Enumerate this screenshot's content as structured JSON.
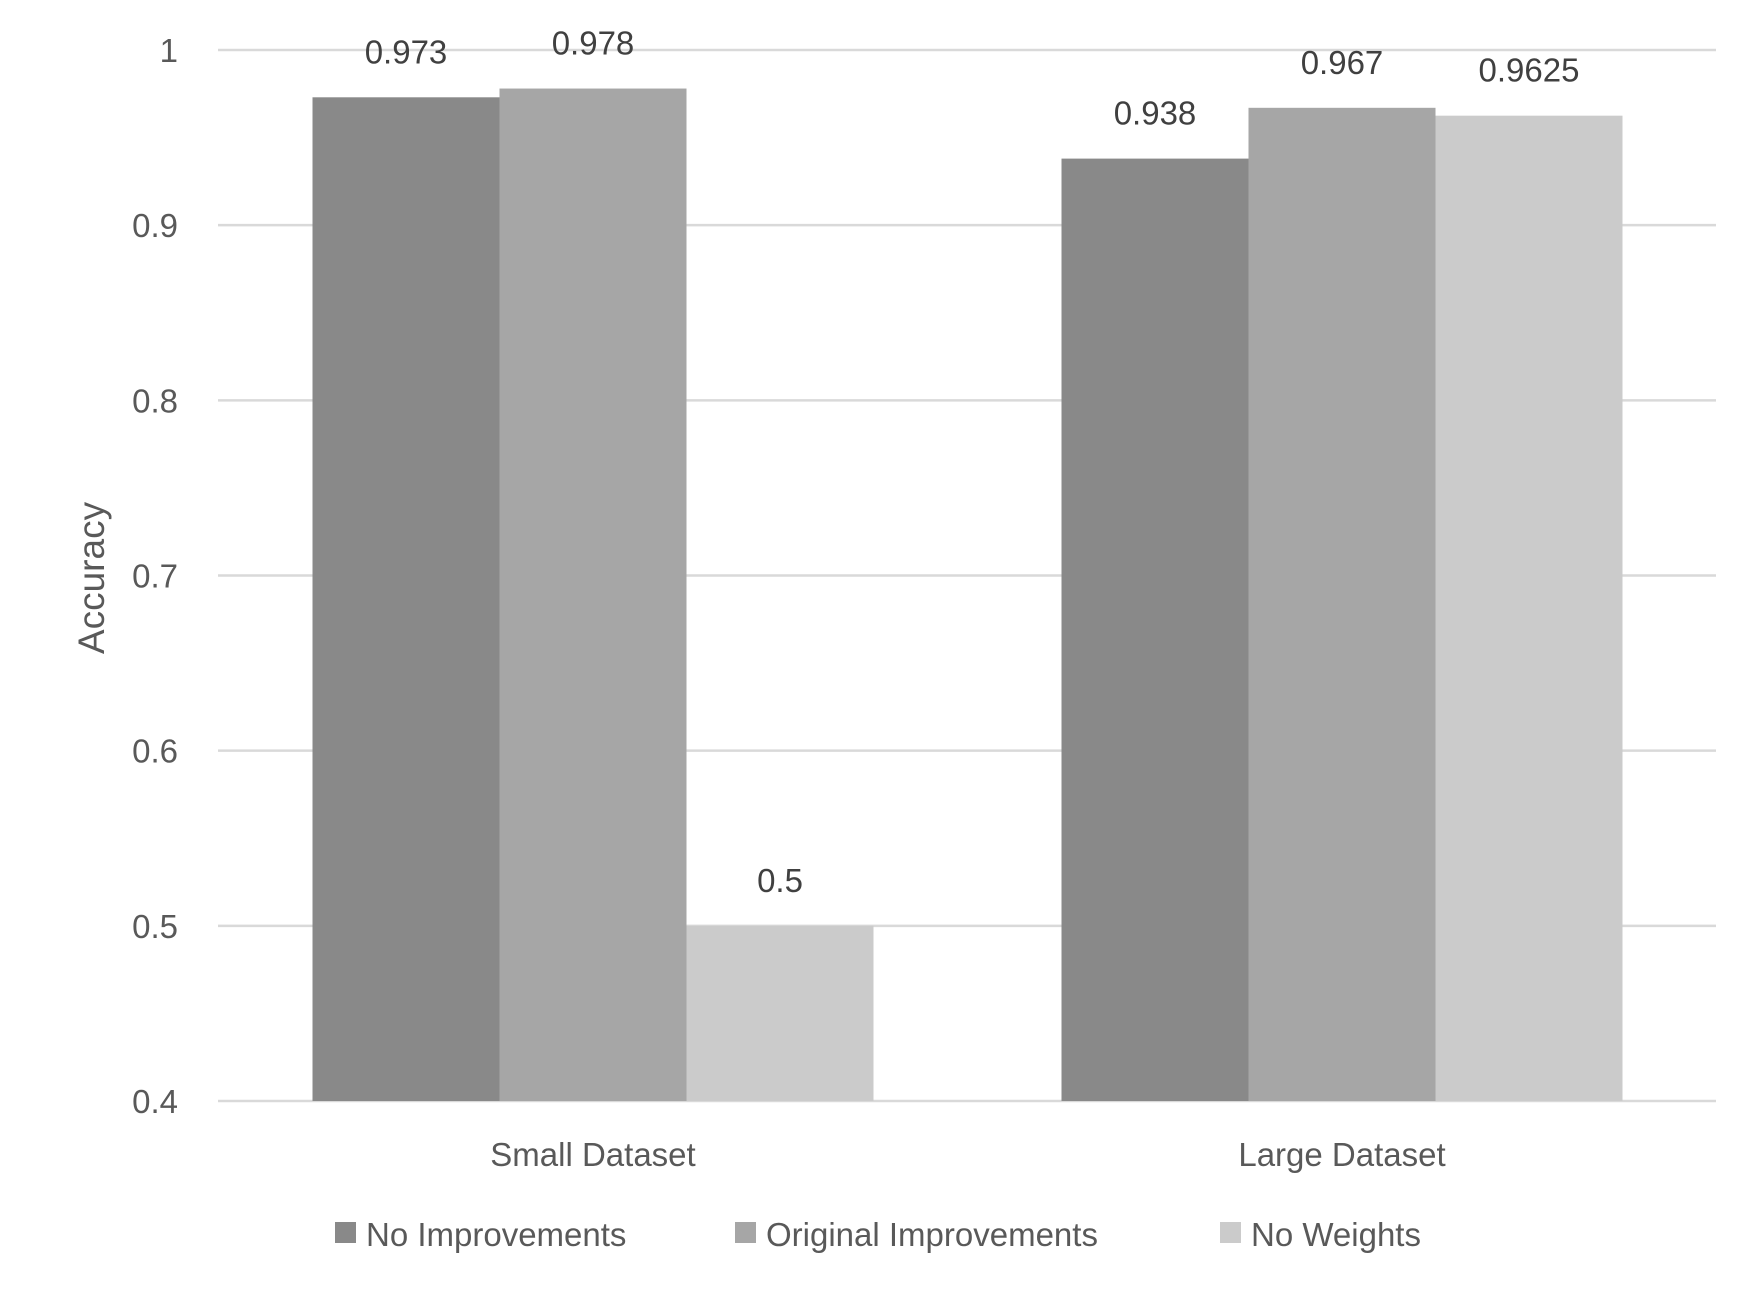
{
  "chart_data": {
    "type": "bar",
    "title": "",
    "xlabel": "",
    "ylabel": "Accuracy",
    "categories": [
      "Small Dataset",
      "Large Dataset"
    ],
    "series": [
      {
        "name": "No Improvements",
        "values": [
          0.973,
          0.938
        ],
        "color": "#898989"
      },
      {
        "name": "Original Improvements",
        "values": [
          0.978,
          0.967
        ],
        "color": "#a6a6a6"
      },
      {
        "name": "No Weights",
        "values": [
          0.5,
          0.9625
        ],
        "color": "#cbcbcb"
      }
    ],
    "data_labels": [
      [
        "0.973",
        "0.938"
      ],
      [
        "0.978",
        "0.967"
      ],
      [
        "0.5",
        "0.9625"
      ]
    ],
    "ylim": [
      0.4,
      1
    ],
    "yticks": [
      0.4,
      0.5,
      0.6,
      0.7,
      0.8,
      0.9,
      1
    ],
    "ytick_labels": [
      "0.4",
      "0.5",
      "0.6",
      "0.7",
      "0.8",
      "0.9",
      "1"
    ],
    "grid": true,
    "gridline_color": "#d9d9d9",
    "legend": "bottom"
  }
}
